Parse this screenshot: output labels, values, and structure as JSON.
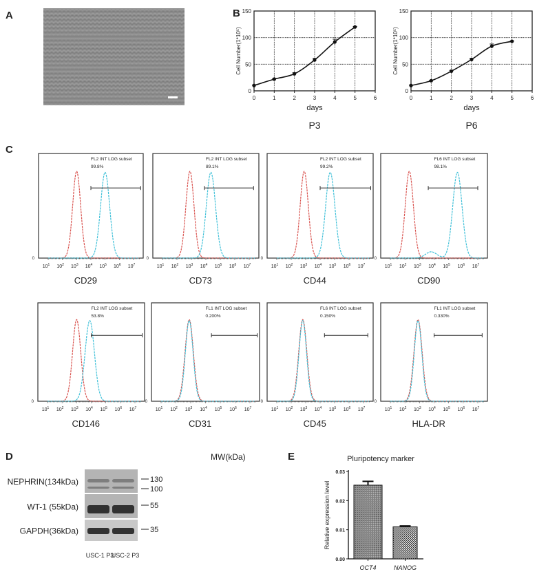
{
  "panel_labels": {
    "a": "A",
    "b": "B",
    "c": "C",
    "d": "D",
    "e": "E"
  },
  "colors": {
    "isotype": "#d9534f",
    "stain": "#3fc0d8",
    "axis": "#222222",
    "image": "#8a8a8a"
  },
  "chart_data": [
    {
      "type": "line",
      "panel": "B",
      "caption": "P3",
      "xlabel": "days",
      "ylabel": "Cell Number(1*10⁵)",
      "xlim": [
        0,
        6
      ],
      "ylim": [
        0,
        150
      ],
      "grid": true,
      "xticks": [
        "0",
        "1",
        "2",
        "3",
        "4",
        "5",
        "6"
      ],
      "yticks": [
        "0",
        "50",
        "100",
        "150"
      ],
      "x": [
        0,
        1,
        2,
        3,
        4,
        5
      ],
      "y": [
        10,
        22,
        32,
        58,
        92,
        120
      ],
      "error": [
        1,
        1.5,
        2,
        3,
        5,
        1
      ]
    },
    {
      "type": "line",
      "panel": "B",
      "caption": "P6",
      "xlabel": "days",
      "ylabel": "Cell Number(1*10⁵)",
      "xlim": [
        0,
        6
      ],
      "ylim": [
        0,
        150
      ],
      "grid": true,
      "xticks": [
        "0",
        "1",
        "2",
        "3",
        "4",
        "5",
        "6"
      ],
      "yticks": [
        "0",
        "50",
        "100",
        "150"
      ],
      "x": [
        0,
        1,
        2,
        3,
        4,
        5
      ],
      "y": [
        10,
        19,
        37,
        59,
        84,
        93
      ],
      "error": [
        1,
        1,
        1.5,
        2,
        4,
        1
      ]
    },
    {
      "type": "histogram",
      "panel": "C",
      "xscale": "log",
      "xlim": [
        1,
        7
      ],
      "xtick_exponents": [
        "1",
        "2",
        "3",
        "4",
        "5",
        "6",
        "7"
      ],
      "ytick": "0",
      "panels": [
        {
          "marker": "CD29",
          "gate_label": "FL2 INT LOG subset",
          "gate_percent": "99.8%",
          "isotype_peak": 3.0,
          "stain_peak": 5.0,
          "gate": [
            4.0,
            7.5
          ]
        },
        {
          "marker": "CD73",
          "gate_label": "FL2 INT LOG subset",
          "gate_percent": "89.1%",
          "isotype_peak": 2.9,
          "stain_peak": 4.35,
          "gate": [
            3.9,
            7.3
          ]
        },
        {
          "marker": "CD44",
          "gate_label": "FL2 INT LOG subset",
          "gate_percent": "99.2%",
          "isotype_peak": 2.9,
          "stain_peak": 4.7,
          "gate": [
            4.0,
            7.5
          ]
        },
        {
          "marker": "CD90",
          "gate_label": "FL6 INT LOG subset",
          "gate_percent": "98.1%",
          "isotype_peak": 2.3,
          "stain_peak": 5.6,
          "gate": [
            3.6,
            7.0
          ]
        },
        {
          "marker": "CD146",
          "gate_label": "FL2 INT LOG subset",
          "gate_percent": "53.8%",
          "isotype_peak": 3.0,
          "stain_peak": 3.9,
          "gate": [
            4.0,
            7.5
          ]
        },
        {
          "marker": "CD31",
          "gate_label": "FL1 INT LOG subset",
          "gate_percent": "0.200%",
          "isotype_peak": 2.9,
          "stain_peak": 2.9,
          "gate": [
            4.4,
            7.5
          ]
        },
        {
          "marker": "CD45",
          "gate_label": "FL6 INT LOG subset",
          "gate_percent": "0.150%",
          "isotype_peak": 2.8,
          "stain_peak": 2.8,
          "gate": [
            4.3,
            7.3
          ]
        },
        {
          "marker": "HLA-DR",
          "gate_label": "FL1 INT LOG subset",
          "gate_percent": "0.330%",
          "isotype_peak": 2.9,
          "stain_peak": 2.9,
          "gate": [
            4.0,
            7.3
          ]
        }
      ]
    },
    {
      "type": "bar",
      "panel": "E",
      "title": "Pluripotency marker",
      "ylabel": "Relative expression level",
      "ylim": [
        0,
        0.03
      ],
      "yticks": [
        "0.00",
        "0.01",
        "0.02",
        "0.03"
      ],
      "categories": [
        "OCT4",
        "NANOG"
      ],
      "values": [
        0.0253,
        0.011
      ],
      "error": [
        0.0013,
        0.0003
      ]
    }
  ],
  "western_blot": {
    "mw_header": "MW(kDa)",
    "rows": [
      {
        "label": "NEPHRIN(134kDa)",
        "markers": [
          "130",
          "100"
        ]
      },
      {
        "label": "WT-1   (55kDa)",
        "markers": [
          "55"
        ]
      },
      {
        "label": "GAPDH(36kDa)",
        "markers": [
          "35"
        ]
      }
    ],
    "lanes": [
      "USC-1 P3",
      "USC-2 P3"
    ]
  }
}
